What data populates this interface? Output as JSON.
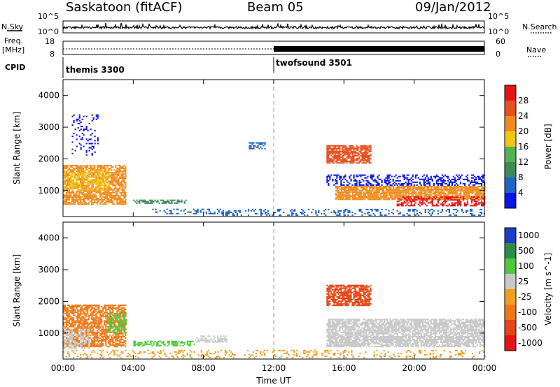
{
  "header": {
    "station": "Saskatoon (fitACF)",
    "beam": "Beam 05",
    "date": "09/Jan/2012"
  },
  "top_panels": {
    "nsky_label": "N.Sky",
    "nsearch_label": "N.Search",
    "noise_ticks": [
      "10^5",
      "10^0"
    ],
    "freq_label_1": "Freq.",
    "freq_label_2": "[MHz]",
    "freq_ticks": [
      "18",
      "8"
    ],
    "nave_label": "Nave",
    "nave_ticks": [
      "60",
      "0"
    ],
    "cpid_label": "CPID",
    "cpid_segments": [
      {
        "name": "themis 3300",
        "start": "00:00",
        "end": "12:00"
      },
      {
        "name": "twofsound 3501",
        "start": "12:00",
        "end": "24:00"
      }
    ]
  },
  "colors": {
    "power": [
      "#0a14e6",
      "#1e64c8",
      "#3c8c5a",
      "#50b450",
      "#f0c814",
      "#f08c1e",
      "#e6501e",
      "#e61414"
    ],
    "velocity": [
      "#1e3cc8",
      "#2d8c46",
      "#50c83c",
      "#c8c8c8",
      "#f0a01e",
      "#f07814",
      "#e64614",
      "#e61414"
    ]
  },
  "chart_data": [
    {
      "type": "heatmap",
      "panel": "power",
      "ylabel": "Slant Range [km]",
      "yticks": [
        "1000",
        "2000",
        "3000",
        "4000"
      ],
      "ylim": [
        180,
        4500
      ],
      "xlim": [
        0,
        24
      ],
      "colorbar_label": "Power [dB]",
      "colorbar_ticks": [
        "4",
        "8",
        "12",
        "16",
        "20",
        "24",
        "28"
      ],
      "grid": false,
      "regions": [
        {
          "t": [
            0.0,
            3.6
          ],
          "r": [
            550,
            1800
          ],
          "color": 5,
          "density": 0.75
        },
        {
          "t": [
            0.0,
            2.6
          ],
          "r": [
            1000,
            1600
          ],
          "color": 4,
          "density": 0.5
        },
        {
          "t": [
            0.5,
            2.0
          ],
          "r": [
            2100,
            3400
          ],
          "color": 0,
          "density": 0.2
        },
        {
          "t": [
            4.0,
            7.0
          ],
          "r": [
            580,
            700
          ],
          "color": 2,
          "density": 0.65
        },
        {
          "t": [
            5.0,
            9.5
          ],
          "r": [
            250,
            420
          ],
          "color": 1,
          "density": 0.3
        },
        {
          "t": [
            10.5,
            11.5
          ],
          "r": [
            2300,
            2500
          ],
          "color": 1,
          "density": 0.5
        },
        {
          "t": [
            15.0,
            17.5
          ],
          "r": [
            1850,
            2400
          ],
          "color": 6,
          "density": 0.8
        },
        {
          "t": [
            15.5,
            24.0
          ],
          "r": [
            700,
            1150
          ],
          "color": 5,
          "density": 0.85
        },
        {
          "t": [
            15.0,
            24.0
          ],
          "r": [
            1150,
            1500
          ],
          "color": 0,
          "density": 0.4
        },
        {
          "t": [
            19.0,
            24.0
          ],
          "r": [
            500,
            800
          ],
          "color": 7,
          "density": 0.5
        },
        {
          "t": [
            9.0,
            24.0
          ],
          "r": [
            200,
            400
          ],
          "color": 1,
          "density": 0.25
        }
      ]
    },
    {
      "type": "heatmap",
      "panel": "velocity",
      "ylabel": "Slant Range [km]",
      "yticks": [
        "1000",
        "2000",
        "3000",
        "4000"
      ],
      "ylim": [
        180,
        4500
      ],
      "xlim": [
        0,
        24
      ],
      "colorbar_label": "Velocity [m s^-1]",
      "colorbar_ticks": [
        "1000",
        "500",
        "100",
        "25",
        "-25",
        "-100",
        "-500",
        "-1000"
      ],
      "grid": false,
      "regions": [
        {
          "t": [
            0.0,
            3.6
          ],
          "r": [
            550,
            1900
          ],
          "color": 5,
          "density": 0.7
        },
        {
          "t": [
            0.0,
            1.5
          ],
          "r": [
            500,
            1100
          ],
          "color": 3,
          "density": 0.6
        },
        {
          "t": [
            2.5,
            3.6
          ],
          "r": [
            1000,
            1600
          ],
          "color": 2,
          "density": 0.5
        },
        {
          "t": [
            4.0,
            7.5
          ],
          "r": [
            580,
            720
          ],
          "color": 2,
          "density": 0.6
        },
        {
          "t": [
            7.5,
            9.3
          ],
          "r": [
            700,
            900
          ],
          "color": 3,
          "density": 0.5
        },
        {
          "t": [
            15.0,
            17.5
          ],
          "r": [
            1850,
            2500
          ],
          "color": 6,
          "density": 0.75
        },
        {
          "t": [
            15.0,
            24.0
          ],
          "r": [
            550,
            1450
          ],
          "color": 3,
          "density": 0.8
        },
        {
          "t": [
            0.0,
            24.0
          ],
          "r": [
            200,
            450
          ],
          "color": 4,
          "density": 0.2
        }
      ]
    }
  ],
  "xaxis": {
    "ticks": [
      "00:00",
      "04:00",
      "08:00",
      "12:00",
      "16:00",
      "20:00",
      "00:00"
    ],
    "label": "Time UT"
  }
}
